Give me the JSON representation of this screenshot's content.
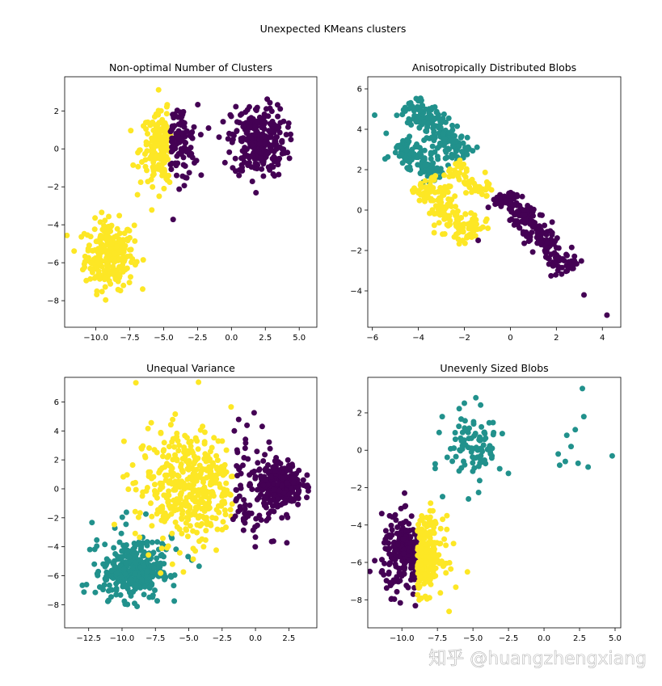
{
  "figure_title": "Unexpected KMeans clusters",
  "watermark": "知乎 @huangzhengxiang",
  "colors": {
    "c0": "#440154",
    "c1": "#21918c",
    "c2": "#fde725"
  },
  "chart_data": [
    {
      "type": "scatter",
      "title": "Non-optimal Number of Clusters",
      "xlim": [
        -12.3,
        6.3
      ],
      "ylim": [
        -9.4,
        3.8
      ],
      "xticks": [
        -10.0,
        -7.5,
        -5.0,
        -2.5,
        0.0,
        2.5,
        5.0
      ],
      "xtick_labels": [
        "−10.0",
        "−7.5",
        "−5.0",
        "−2.5",
        "0.0",
        "2.5",
        "5.0"
      ],
      "yticks": [
        -8,
        -6,
        -4,
        -2,
        0,
        2
      ],
      "ytick_labels": [
        "−8",
        "−6",
        "−4",
        "−2",
        "0",
        "2"
      ],
      "clusters": [
        {
          "color": "#fde725",
          "shape": "gauss",
          "n": 260,
          "cx": -9.0,
          "cy": -5.6,
          "sx": 0.9,
          "sy": 0.9
        },
        {
          "color": "#fde725",
          "shape": "gauss",
          "n": 170,
          "cx": -5.0,
          "cy": 0.0,
          "sx": 0.85,
          "sy": 0.95,
          "xmax": -4.5
        },
        {
          "color": "#440154",
          "shape": "gauss",
          "n": 100,
          "cx": -3.9,
          "cy": 0.3,
          "sx": 0.7,
          "sy": 1.0,
          "xmin": -4.5
        },
        {
          "color": "#440154",
          "shape": "gauss",
          "n": 280,
          "cx": 2.0,
          "cy": 0.4,
          "sx": 1.0,
          "sy": 0.95
        }
      ]
    },
    {
      "type": "scatter",
      "title": "Anisotropically Distributed Blobs",
      "xlim": [
        -6.2,
        4.8
      ],
      "ylim": [
        -5.8,
        6.6
      ],
      "xticks": [
        -6,
        -4,
        -2,
        0,
        2,
        4
      ],
      "xtick_labels": [
        "−6",
        "−4",
        "−2",
        "0",
        "2",
        "4"
      ],
      "yticks": [
        -4,
        -2,
        0,
        2,
        4,
        6
      ],
      "ytick_labels": [
        "−4",
        "−2",
        "0",
        "2",
        "4",
        "6"
      ],
      "clusters": [
        {
          "color": "#21918c",
          "shape": "band",
          "n": 200,
          "x0": -4.4,
          "y0": 5.3,
          "x1": -2.0,
          "y1": 2.6,
          "w": 0.35
        },
        {
          "color": "#21918c",
          "shape": "band",
          "n": 110,
          "x0": -4.8,
          "y0": 3.3,
          "x1": -3.1,
          "y1": 1.6,
          "w": 0.3
        },
        {
          "color": "#fde725",
          "shape": "band",
          "n": 160,
          "x0": -3.8,
          "y0": 1.4,
          "x1": -1.6,
          "y1": -1.4,
          "w": 0.4
        },
        {
          "color": "#fde725",
          "shape": "band",
          "n": 60,
          "x0": -2.6,
          "y0": 2.1,
          "x1": -1.0,
          "y1": 0.7,
          "w": 0.3
        },
        {
          "color": "#440154",
          "shape": "band",
          "n": 230,
          "x0": -0.4,
          "y0": 0.8,
          "x1": 2.6,
          "y1": -3.0,
          "w": 0.35
        }
      ],
      "extra_points": [
        {
          "color": "#440154",
          "x": 4.2,
          "y": -5.2
        },
        {
          "color": "#440154",
          "x": 3.2,
          "y": -4.2
        },
        {
          "color": "#21918c",
          "x": -5.9,
          "y": 4.7
        },
        {
          "color": "#21918c",
          "x": -5.4,
          "y": 3.8
        },
        {
          "color": "#440154",
          "x": -1.4,
          "y": -1.5
        }
      ]
    },
    {
      "type": "scatter",
      "title": "Unequal Variance",
      "xlim": [
        -14.3,
        4.6
      ],
      "ylim": [
        -9.6,
        7.7
      ],
      "xticks": [
        -12.5,
        -10.0,
        -7.5,
        -5.0,
        -2.5,
        0.0,
        2.5
      ],
      "xtick_labels": [
        "−12.5",
        "−10.0",
        "−7.5",
        "−5.0",
        "−2.5",
        "0.0",
        "2.5"
      ],
      "yticks": [
        -8,
        -6,
        -4,
        -2,
        0,
        2,
        4,
        6
      ],
      "ytick_labels": [
        "−8",
        "−6",
        "−4",
        "−2",
        "0",
        "2",
        "4",
        "6"
      ],
      "clusters": [
        {
          "color": "#21918c",
          "shape": "gauss",
          "n": 330,
          "cx": -9.2,
          "cy": -5.7,
          "sx": 1.1,
          "sy": 0.95
        },
        {
          "color": "#21918c",
          "shape": "gauss",
          "n": 40,
          "cx": -8.5,
          "cy": -4.3,
          "sx": 2.4,
          "sy": 1.5
        },
        {
          "color": "#fde725",
          "shape": "gauss",
          "n": 420,
          "cx": -5.0,
          "cy": 0.2,
          "sx": 2.0,
          "sy": 2.0,
          "xmax": -1.7
        },
        {
          "color": "#440154",
          "shape": "gauss",
          "n": 90,
          "cx": -1.0,
          "cy": 0.0,
          "sx": 1.4,
          "sy": 2.2,
          "xmin": -1.7
        },
        {
          "color": "#440154",
          "shape": "gauss",
          "n": 260,
          "cx": 1.9,
          "cy": 0.3,
          "sx": 0.8,
          "sy": 0.75
        }
      ]
    },
    {
      "type": "scatter",
      "title": "Unevenly Sized Blobs",
      "xlim": [
        -12.4,
        5.4
      ],
      "ylim": [
        -9.5,
        3.9
      ],
      "xticks": [
        -10.0,
        -7.5,
        -5.0,
        -2.5,
        0.0,
        2.5,
        5.0
      ],
      "xtick_labels": [
        "−10.0",
        "−7.5",
        "−5.0",
        "−2.5",
        "0.0",
        "2.5",
        "5.0"
      ],
      "yticks": [
        -8,
        -6,
        -4,
        -2,
        0,
        2
      ],
      "ytick_labels": [
        "−8",
        "−6",
        "−4",
        "−2",
        "0",
        "2"
      ],
      "clusters": [
        {
          "color": "#440154",
          "shape": "gauss",
          "n": 220,
          "cx": -9.4,
          "cy": -5.6,
          "sx": 1.0,
          "sy": 1.0,
          "xmax": -8.9
        },
        {
          "color": "#fde725",
          "shape": "gauss",
          "n": 210,
          "cx": -8.6,
          "cy": -5.6,
          "sx": 0.75,
          "sy": 1.0,
          "xmin": -8.9
        },
        {
          "color": "#21918c",
          "shape": "gauss",
          "n": 100,
          "cx": -4.9,
          "cy": 0.2,
          "sx": 1.0,
          "sy": 1.0
        }
      ],
      "extra_points": [
        {
          "color": "#21918c",
          "x": 2.7,
          "y": 3.3
        },
        {
          "color": "#21918c",
          "x": 2.8,
          "y": 1.8
        },
        {
          "color": "#21918c",
          "x": 2.2,
          "y": 1.1
        },
        {
          "color": "#21918c",
          "x": 1.6,
          "y": 0.8
        },
        {
          "color": "#21918c",
          "x": 1.9,
          "y": 0.2
        },
        {
          "color": "#21918c",
          "x": 1.0,
          "y": -0.2
        },
        {
          "color": "#21918c",
          "x": 1.5,
          "y": -0.6
        },
        {
          "color": "#21918c",
          "x": 2.4,
          "y": -0.7
        },
        {
          "color": "#21918c",
          "x": 1.1,
          "y": -0.8
        },
        {
          "color": "#21918c",
          "x": 3.1,
          "y": -0.9
        },
        {
          "color": "#21918c",
          "x": 4.8,
          "y": -0.3
        }
      ]
    }
  ]
}
